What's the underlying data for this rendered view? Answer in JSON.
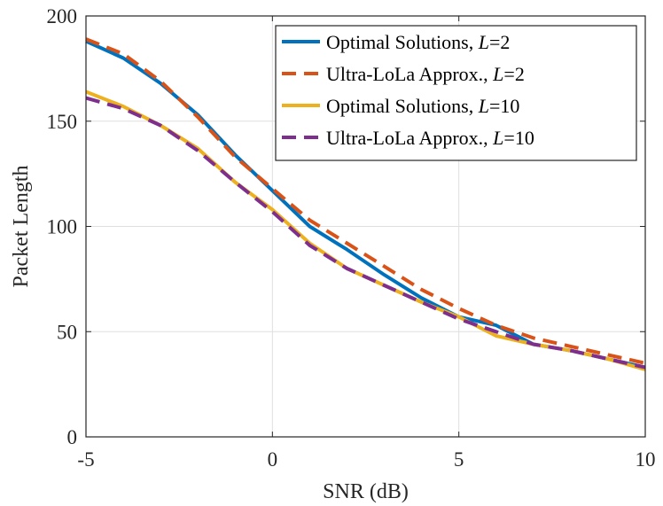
{
  "chart_data": {
    "type": "line",
    "title": "",
    "xlabel": "SNR (dB)",
    "ylabel": "Packet Length",
    "xlim": [
      -5,
      10
    ],
    "ylim": [
      0,
      200
    ],
    "xticks": [
      -5,
      0,
      5,
      10
    ],
    "yticks": [
      0,
      50,
      100,
      150,
      200
    ],
    "grid": true,
    "legend_position": "top-right",
    "x": [
      -5,
      -4,
      -3,
      -2,
      -1,
      0,
      1,
      2,
      3,
      4,
      5,
      6,
      7,
      8,
      9,
      10
    ],
    "series": [
      {
        "name": "Optimal Solutions, L=2",
        "name_parts": [
          "Optimal Solutions, ",
          "L",
          "=2"
        ],
        "color": "#0072BD",
        "style": "solid",
        "values": [
          188,
          180,
          168,
          153,
          134,
          117,
          100,
          89,
          77,
          66,
          57,
          53,
          44,
          41,
          37,
          33
        ]
      },
      {
        "name": "Ultra-LoLa Approx., L=2",
        "name_parts": [
          "Ultra-LoLa Approx., ",
          "L",
          "=2"
        ],
        "color": "#D95319",
        "style": "dashed",
        "values": [
          189,
          182,
          169,
          152,
          133,
          118,
          103,
          92,
          81,
          70,
          61,
          53,
          47,
          43,
          39,
          35
        ]
      },
      {
        "name": "Optimal Solutions, L=10",
        "name_parts": [
          "Optimal Solutions, ",
          "L",
          "=10"
        ],
        "color": "#EDB120",
        "style": "solid",
        "values": [
          164,
          157,
          148,
          137,
          121,
          108,
          92,
          80,
          72,
          64,
          57,
          48,
          44,
          41,
          37,
          32
        ]
      },
      {
        "name": "Ultra-LoLa Approx., L=10",
        "name_parts": [
          "Ultra-LoLa Approx., ",
          "L",
          "=10"
        ],
        "color": "#7E2F8E",
        "style": "dashed",
        "values": [
          161,
          156,
          148,
          136,
          121,
          107,
          91,
          80,
          72,
          64,
          56,
          50,
          44,
          41,
          37,
          33
        ]
      }
    ]
  }
}
